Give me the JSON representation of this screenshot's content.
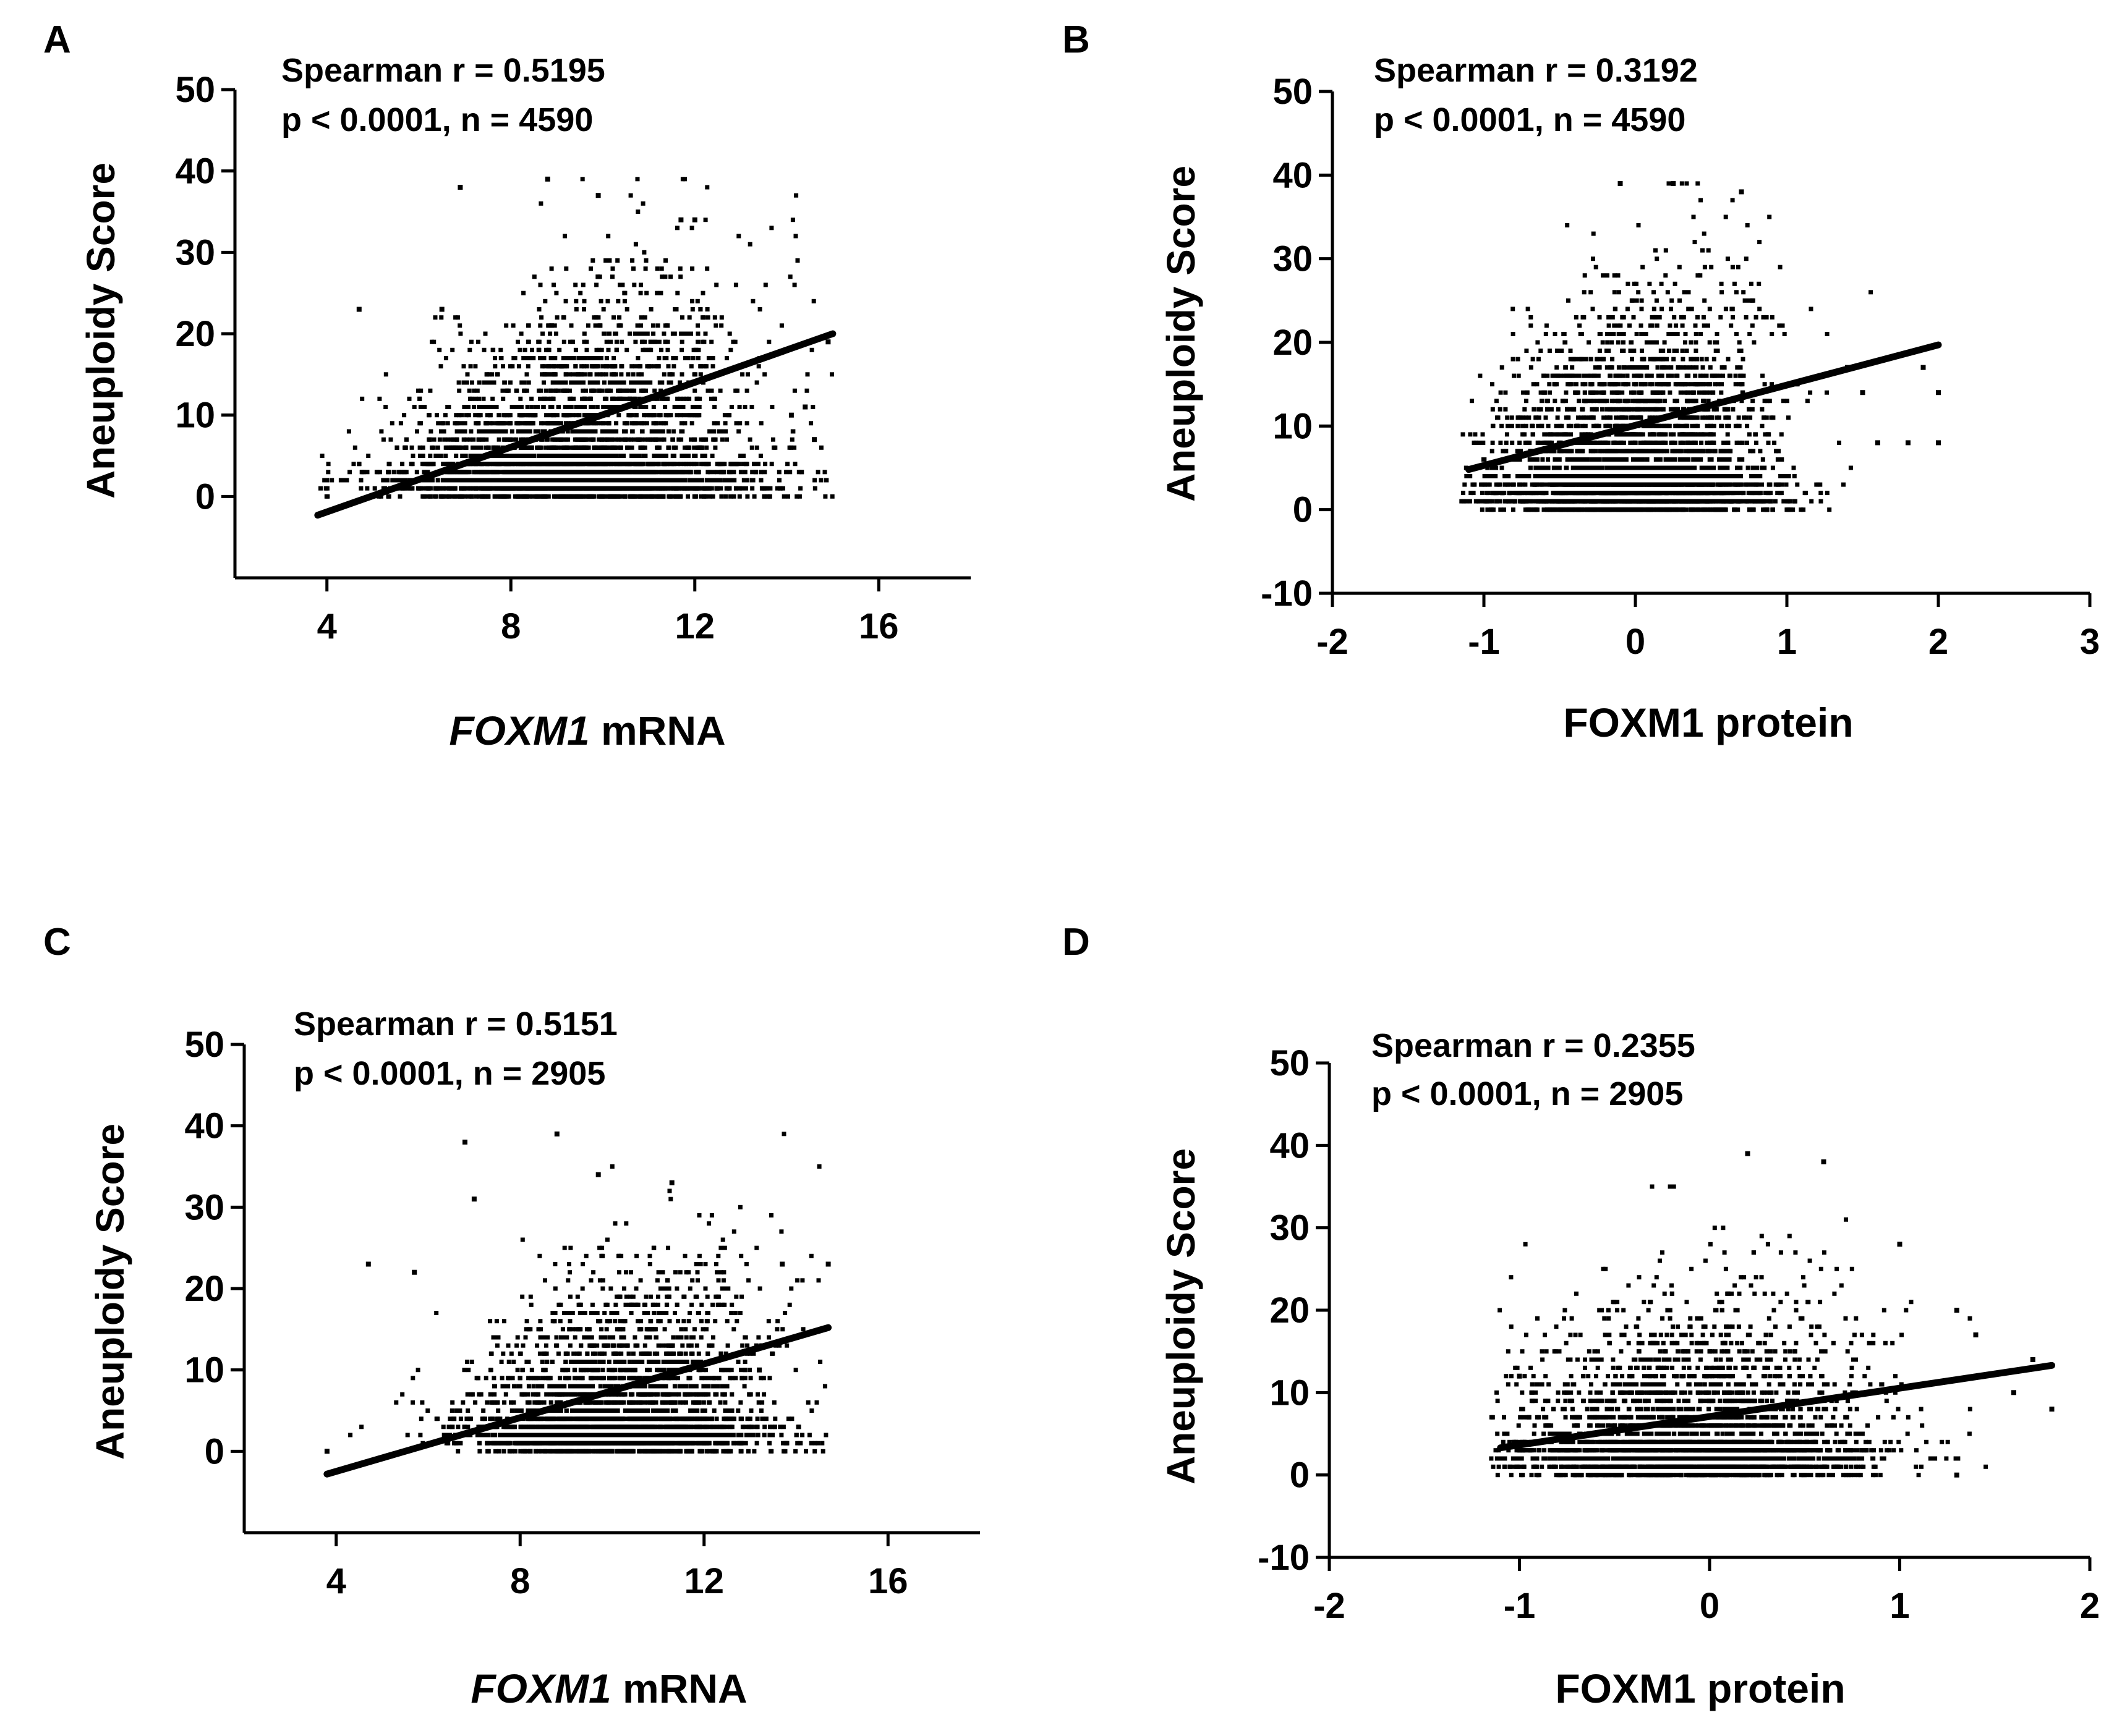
{
  "figure": {
    "panels": [
      {
        "letter": "A",
        "stat_line1": "Spearman r = 0.5195",
        "stat_line2": "p < 0.0001, n =  4590",
        "xlabel_italic": "FOXM1",
        "xlabel_rest": " mRNA",
        "ylabel": "Aneuploidy Score"
      },
      {
        "letter": "B",
        "stat_line1": "Spearman r = 0.3192",
        "stat_line2": "p < 0.0001, n =  4590",
        "xlabel_italic": "",
        "xlabel_rest": "FOXM1 protein",
        "ylabel": "Aneuploidy Score"
      },
      {
        "letter": "C",
        "stat_line1": "Spearman r = 0.5151",
        "stat_line2": "p < 0.0001, n =  2905",
        "xlabel_italic": "FOXM1",
        "xlabel_rest": " mRNA",
        "ylabel": "Aneuploidy Score"
      },
      {
        "letter": "D",
        "stat_line1": "Spearman r = 0.2355",
        "stat_line2": "p < 0.0001, n =  2905",
        "xlabel_italic": "",
        "xlabel_rest": "FOXM1 protein",
        "ylabel": "Aneuploidy Score"
      }
    ]
  },
  "chart_data": [
    {
      "type": "scatter",
      "panel": "A",
      "title": "",
      "xlabel": "FOXM1 mRNA",
      "ylabel": "Aneuploidy Score",
      "xlim": [
        2,
        18
      ],
      "ylim": [
        -10,
        50
      ],
      "x_ticks": [
        4,
        8,
        12,
        16
      ],
      "x_tick_labels": [
        "4",
        "8",
        "12",
        "16"
      ],
      "y_ticks": [
        0,
        10,
        20,
        30,
        40,
        50
      ],
      "y_tick_labels": [
        "0",
        "10",
        "20",
        "30",
        "40",
        "50"
      ],
      "n": 4590,
      "spearman_r": 0.5195,
      "p": "< 0.0001",
      "fit_line": {
        "x": [
          3.8,
          15.0
        ],
        "y": [
          -2.3,
          20.0
        ]
      },
      "point_cloud": {
        "x_center": 9.5,
        "x_spread": 1.9,
        "x_min": 3.8,
        "x_max": 15.0,
        "y_min": 0,
        "y_max": 39,
        "integer_y": true
      },
      "outliers": [
        [
          4.7,
          23
        ],
        [
          6.5,
          23
        ],
        [
          6.9,
          38
        ],
        [
          8.8,
          39
        ],
        [
          9.9,
          37
        ],
        [
          11.7,
          34
        ],
        [
          12.0,
          34
        ],
        [
          14.1,
          10
        ],
        [
          14.4,
          11
        ],
        [
          14.6,
          7
        ],
        [
          14.9,
          19
        ],
        [
          15.0,
          20
        ]
      ]
    },
    {
      "type": "scatter",
      "panel": "B",
      "title": "",
      "xlabel": "FOXM1 protein",
      "ylabel": "Aneuploidy Score",
      "xlim": [
        -2,
        3
      ],
      "ylim": [
        -10,
        50
      ],
      "x_ticks": [
        -2,
        -1,
        0,
        1,
        2,
        3
      ],
      "x_tick_labels": [
        "-2",
        "-1",
        "0",
        "1",
        "2",
        "3"
      ],
      "y_ticks": [
        -10,
        0,
        10,
        20,
        30,
        40,
        50
      ],
      "y_tick_labels": [
        "-10",
        "0",
        "10",
        "20",
        "30",
        "40",
        "50"
      ],
      "n": 4590,
      "spearman_r": 0.3192,
      "p": "< 0.0001",
      "fit_line": {
        "x": [
          -1.1,
          2.0
        ],
        "y": [
          4.8,
          19.7
        ]
      },
      "point_cloud": {
        "x_center": 0.0,
        "x_spread": 0.45,
        "x_min": -1.15,
        "x_max": 2.0,
        "y_min": 0,
        "y_max": 39,
        "integer_y": true
      },
      "outliers": [
        [
          -0.1,
          39
        ],
        [
          0.25,
          39
        ],
        [
          0.7,
          38
        ],
        [
          1.4,
          17
        ],
        [
          1.5,
          14
        ],
        [
          1.6,
          8
        ],
        [
          1.9,
          17
        ],
        [
          2.0,
          14
        ],
        [
          2.0,
          8
        ],
        [
          1.8,
          8
        ]
      ]
    },
    {
      "type": "scatter",
      "panel": "C",
      "title": "",
      "xlabel": "FOXM1 mRNA",
      "ylabel": "Aneuploidy Score",
      "xlim": [
        2,
        18
      ],
      "ylim": [
        -10,
        50
      ],
      "x_ticks": [
        4,
        8,
        12,
        16
      ],
      "x_tick_labels": [
        "4",
        "8",
        "12",
        "16"
      ],
      "y_ticks": [
        0,
        10,
        20,
        30,
        40,
        50
      ],
      "y_tick_labels": [
        "0",
        "10",
        "20",
        "30",
        "40",
        "50"
      ],
      "n": 2905,
      "spearman_r": 0.5151,
      "p": "< 0.0001",
      "fit_line": {
        "x": [
          3.8,
          14.7
        ],
        "y": [
          -2.8,
          15.2
        ]
      },
      "point_cloud": {
        "x_center": 10.2,
        "x_spread": 1.6,
        "x_min": 3.8,
        "x_max": 14.7,
        "y_min": 0,
        "y_max": 39,
        "integer_y": true
      },
      "outliers": [
        [
          3.8,
          0
        ],
        [
          4.7,
          23
        ],
        [
          5.7,
          22
        ],
        [
          6.8,
          38
        ],
        [
          7.0,
          31
        ],
        [
          8.8,
          39
        ],
        [
          9.7,
          34
        ],
        [
          11.3,
          33
        ],
        [
          13.2,
          10
        ],
        [
          13.7,
          23
        ],
        [
          14.7,
          23
        ]
      ]
    },
    {
      "type": "scatter",
      "panel": "D",
      "title": "",
      "xlabel": "FOXM1 protein",
      "ylabel": "Aneuploidy Score",
      "xlim": [
        -2,
        2
      ],
      "ylim": [
        -10,
        50
      ],
      "x_ticks": [
        -2,
        -1,
        0,
        1,
        2
      ],
      "x_tick_labels": [
        "-2",
        "-1",
        "0",
        "1",
        "2"
      ],
      "y_ticks": [
        -10,
        0,
        10,
        20,
        30,
        40,
        50
      ],
      "y_tick_labels": [
        "-10",
        "0",
        "10",
        "20",
        "30",
        "40",
        "50"
      ],
      "n": 2905,
      "spearman_r": 0.2355,
      "p": "< 0.0001",
      "fit_line": {
        "x": [
          -1.1,
          1.8
        ],
        "y": [
          3.3,
          13.3
        ]
      },
      "point_cloud": {
        "x_center": -0.1,
        "x_spread": 0.45,
        "x_min": -1.15,
        "x_max": 1.8,
        "y_min": 0,
        "y_max": 39,
        "integer_y": true
      },
      "outliers": [
        [
          0.2,
          39
        ],
        [
          0.6,
          38
        ],
        [
          1.0,
          28
        ],
        [
          1.3,
          20
        ],
        [
          1.4,
          17
        ],
        [
          1.6,
          10
        ],
        [
          1.7,
          14
        ],
        [
          1.8,
          8
        ],
        [
          -1.0,
          12
        ],
        [
          1.3,
          0
        ]
      ]
    }
  ]
}
